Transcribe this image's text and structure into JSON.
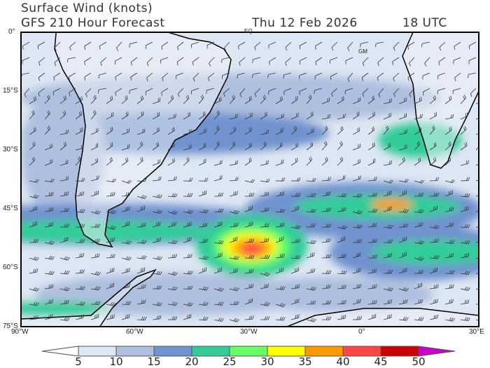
{
  "header": {
    "title": "Surface Wind (knots)",
    "model": "GFS 210 Hour Forecast",
    "date": "Thu 12 Feb 2026",
    "time": "18 UTC"
  },
  "map": {
    "lat_labels": [
      "0°",
      "15°S",
      "30°S",
      "45°S",
      "60°S",
      "75°S"
    ],
    "lon_labels": [
      "90°W",
      "60°W",
      "30°W",
      "0°",
      "30°E"
    ],
    "place_labels": [
      "EQ",
      "GM"
    ],
    "extent": {
      "lon": [
        -90,
        30
      ],
      "lat": [
        -75,
        0
      ]
    }
  },
  "colorbar": {
    "labels": [
      "5",
      "10",
      "15",
      "20",
      "25",
      "30",
      "35",
      "40",
      "45",
      "50"
    ],
    "colors": [
      "#ffffff",
      "#dde6f3",
      "#aebfdf",
      "#6f93cf",
      "#33cc99",
      "#66ff66",
      "#ffff00",
      "#ff9900",
      "#ff4444",
      "#cc0000",
      "#cc00cc"
    ]
  }
}
